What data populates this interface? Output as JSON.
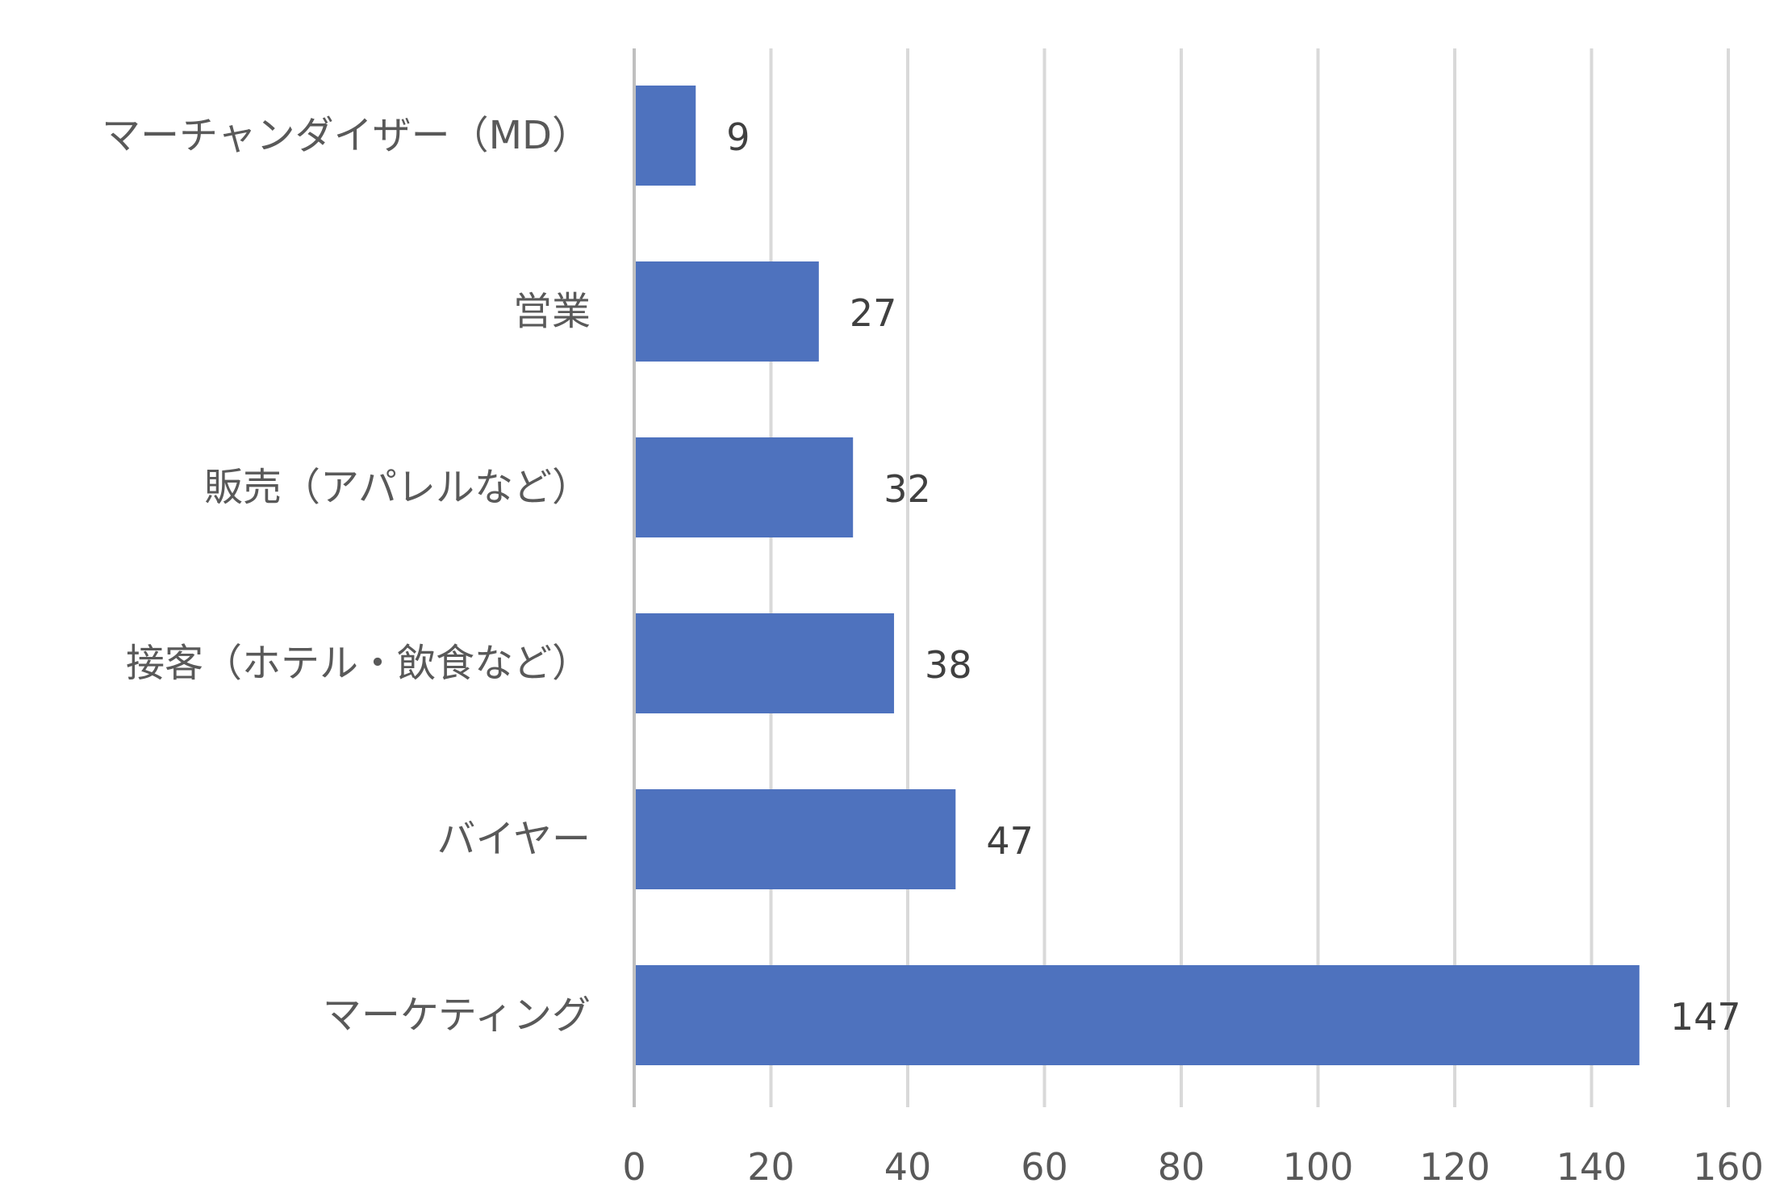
{
  "chart_data": {
    "type": "bar",
    "orientation": "horizontal",
    "categories": [
      "マーチャンダイザー（MD）",
      "営業",
      "販売（アパレルなど）",
      "接客（ホテル・飲食など）",
      "バイヤー",
      "マーケティング"
    ],
    "values": [
      9,
      27,
      32,
      38,
      47,
      147
    ],
    "data_labels": [
      "9",
      "27",
      "32",
      "38",
      "47",
      "147"
    ],
    "xlim": [
      0,
      160
    ],
    "x_ticks": [
      0,
      20,
      40,
      60,
      80,
      100,
      120,
      140,
      160
    ],
    "x_tick_labels": [
      "0",
      "20",
      "40",
      "60",
      "80",
      "100",
      "120",
      "140",
      "160"
    ],
    "title": "",
    "xlabel": "",
    "ylabel": "",
    "grid": "vertical",
    "legend": "none",
    "bar_color": "#4E72BE",
    "grid_color": "#d9d9d9",
    "label_color": "#595959"
  }
}
